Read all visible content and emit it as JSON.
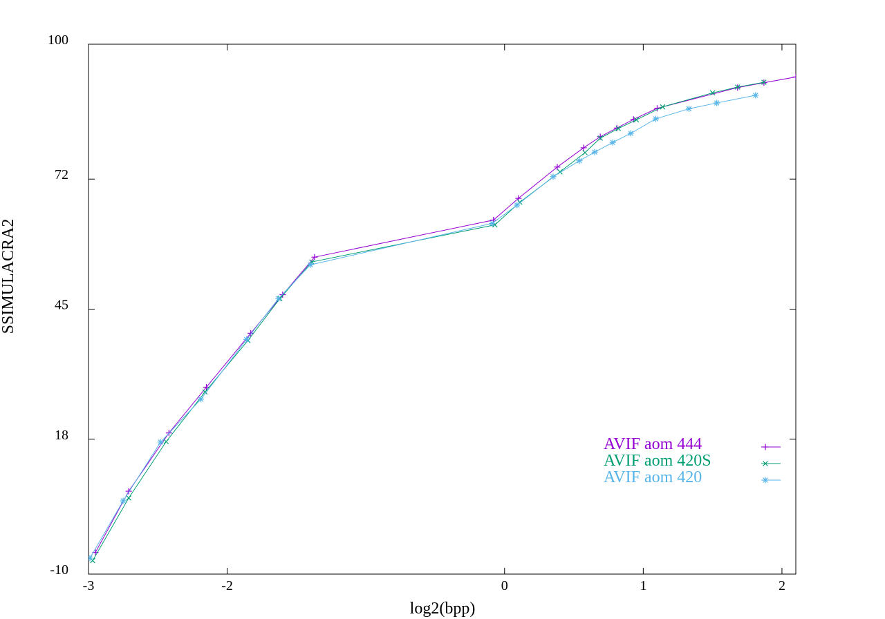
{
  "chart_data": {
    "type": "line",
    "title": "",
    "xlabel": "log2(bpp)",
    "ylabel": "SSIMULACRA2",
    "xlim": [
      -3,
      2.1
    ],
    "ylim": [
      -10,
      100
    ],
    "x_ticks": [
      -3,
      -2,
      0,
      1,
      2
    ],
    "x_tick_labels": [
      "-3",
      "-2",
      "0",
      "1",
      "2"
    ],
    "y_ticks": [
      -10,
      18,
      45,
      72,
      100
    ],
    "y_tick_labels": [
      "-10",
      "18",
      "45",
      "72",
      "100"
    ],
    "grid": false,
    "legend_position": "bottom-right",
    "series": [
      {
        "name": "AVIF aom 444",
        "color": "#9400d3",
        "marker": "plus",
        "points": [
          [
            -2.95,
            -5.5
          ],
          [
            -2.71,
            7.2
          ],
          [
            -2.42,
            19.3
          ],
          [
            -2.15,
            28.8
          ],
          [
            -1.83,
            40.0
          ],
          [
            -1.6,
            48.0
          ],
          [
            -1.37,
            55.8
          ],
          [
            -0.08,
            63.5
          ],
          [
            0.1,
            68.0
          ],
          [
            0.38,
            74.5
          ],
          [
            0.57,
            78.5
          ],
          [
            0.69,
            80.8
          ],
          [
            0.81,
            82.6
          ],
          [
            0.93,
            84.4
          ],
          [
            1.1,
            86.7
          ],
          [
            1.68,
            91.0
          ],
          [
            1.87,
            92.0
          ],
          [
            2.1,
            93.2
          ]
        ]
      },
      {
        "name": "AVIF aom 420S",
        "color": "#009e73",
        "marker": "x",
        "points": [
          [
            -2.97,
            -7.2
          ],
          [
            -2.71,
            5.8
          ],
          [
            -2.44,
            17.5
          ],
          [
            -2.16,
            27.8
          ],
          [
            -1.85,
            38.5
          ],
          [
            -1.62,
            47.2
          ],
          [
            -1.39,
            54.8
          ],
          [
            -0.07,
            62.5
          ],
          [
            0.11,
            67.2
          ],
          [
            0.4,
            73.5
          ],
          [
            0.58,
            77.5
          ],
          [
            0.69,
            80.5
          ],
          [
            0.82,
            82.5
          ],
          [
            0.95,
            84.3
          ],
          [
            1.14,
            87.0
          ],
          [
            1.5,
            89.9
          ],
          [
            1.68,
            91.1
          ],
          [
            1.87,
            92.1
          ]
        ]
      },
      {
        "name": "AVIF aom 420",
        "color": "#56b4e9",
        "marker": "star",
        "points": [
          [
            -2.99,
            -6.7
          ],
          [
            -2.75,
            5.2
          ],
          [
            -2.48,
            17.4
          ],
          [
            -2.19,
            26.3
          ],
          [
            -1.86,
            38.7
          ],
          [
            -1.63,
            47.2
          ],
          [
            -1.4,
            54.2
          ],
          [
            -0.09,
            62.8
          ],
          [
            0.09,
            66.6
          ],
          [
            0.35,
            72.5
          ],
          [
            0.54,
            75.8
          ],
          [
            0.65,
            77.6
          ],
          [
            0.78,
            79.6
          ],
          [
            0.91,
            81.5
          ],
          [
            1.09,
            84.5
          ],
          [
            1.33,
            86.6
          ],
          [
            1.53,
            87.8
          ],
          [
            1.81,
            89.4
          ]
        ]
      }
    ]
  }
}
